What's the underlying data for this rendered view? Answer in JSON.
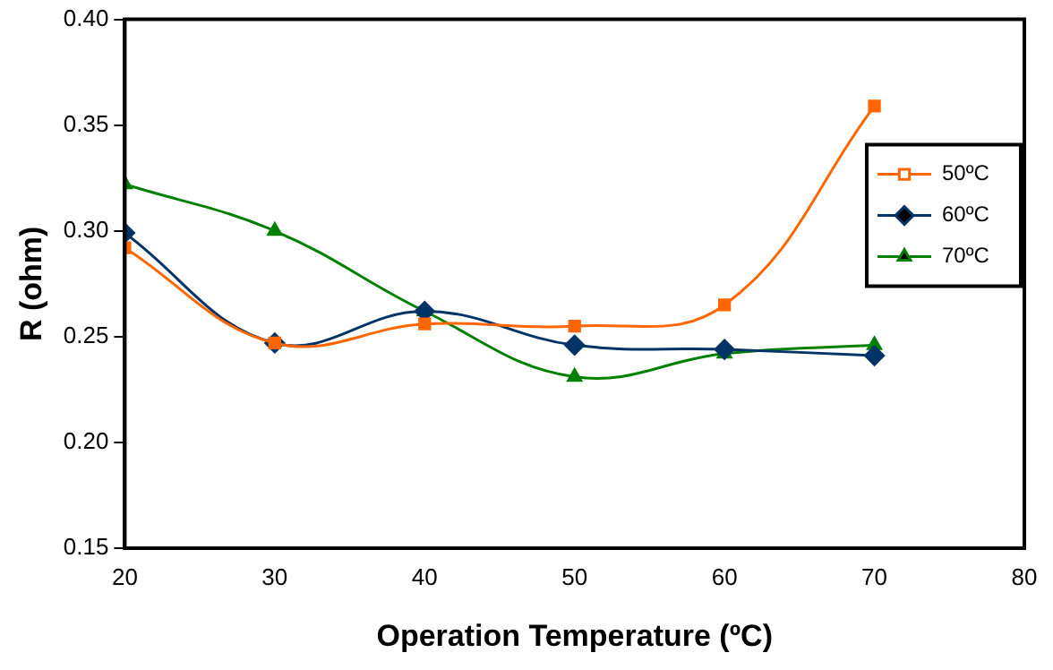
{
  "chart_data": {
    "type": "line",
    "xlabel": "Operation Temperature (ºC)",
    "ylabel": "R (ohm)",
    "x": [
      20,
      30,
      40,
      50,
      60,
      70
    ],
    "series": [
      {
        "name": "50ºC",
        "color": "#ff6600",
        "marker": "square",
        "values": [
          0.292,
          0.247,
          0.256,
          0.255,
          0.265,
          0.359
        ]
      },
      {
        "name": "60ºC",
        "color": "#003366",
        "marker": "diamond",
        "values": [
          0.299,
          0.247,
          0.262,
          0.246,
          0.244,
          0.241
        ]
      },
      {
        "name": "70ºC",
        "color": "#008000",
        "marker": "triangle",
        "values": [
          0.322,
          0.3,
          0.262,
          0.231,
          0.242,
          0.246
        ]
      }
    ],
    "xlim": [
      20,
      80
    ],
    "xticks": [
      20,
      30,
      40,
      50,
      60,
      70,
      80
    ],
    "ylim": [
      0.15,
      0.4
    ],
    "yticks": [
      {
        "value": 0.15,
        "label": "0.15"
      },
      {
        "value": 0.2,
        "label": "0.20"
      },
      {
        "value": 0.25,
        "label": "0.25"
      },
      {
        "value": 0.3,
        "label": "0.30"
      },
      {
        "value": 0.35,
        "label": "0.35"
      },
      {
        "value": 0.4,
        "label": "0.40"
      }
    ],
    "grid": false,
    "legend": "right",
    "line_style": "solid"
  }
}
